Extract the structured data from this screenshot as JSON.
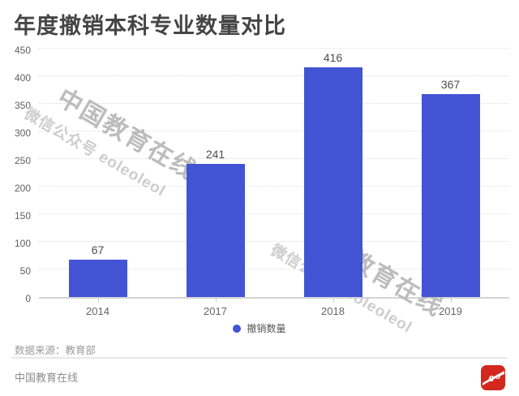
{
  "title": "年度撤销本科专业数量对比",
  "chart_data": {
    "type": "bar",
    "categories": [
      "2014",
      "2017",
      "2018",
      "2019"
    ],
    "values": [
      67,
      241,
      416,
      367
    ],
    "series_name": "撤销数量",
    "title": "年度撤销本科专业数量对比",
    "xlabel": "",
    "ylabel": "",
    "ylim": [
      0,
      450
    ],
    "ytick_step": 50,
    "yticks": [
      0,
      50,
      100,
      150,
      200,
      250,
      300,
      350,
      400,
      450
    ],
    "grid": true,
    "legend_position": "bottom"
  },
  "legend": {
    "label": "撤销数量"
  },
  "watermark": {
    "line1": "中国教育在线",
    "line2": "微信公众号 eoleoleol"
  },
  "footer": {
    "source_note": "数据来源：教育部",
    "brand": "中国教育在线",
    "logo_icon": "eol-logo"
  },
  "colors": {
    "bar": "#4254d4",
    "legend_dot": "#4254d4",
    "logo_red": "#d3281e",
    "title_text": "#454545",
    "axis_text": "#5f5f5f",
    "gridline": "#dedede"
  }
}
